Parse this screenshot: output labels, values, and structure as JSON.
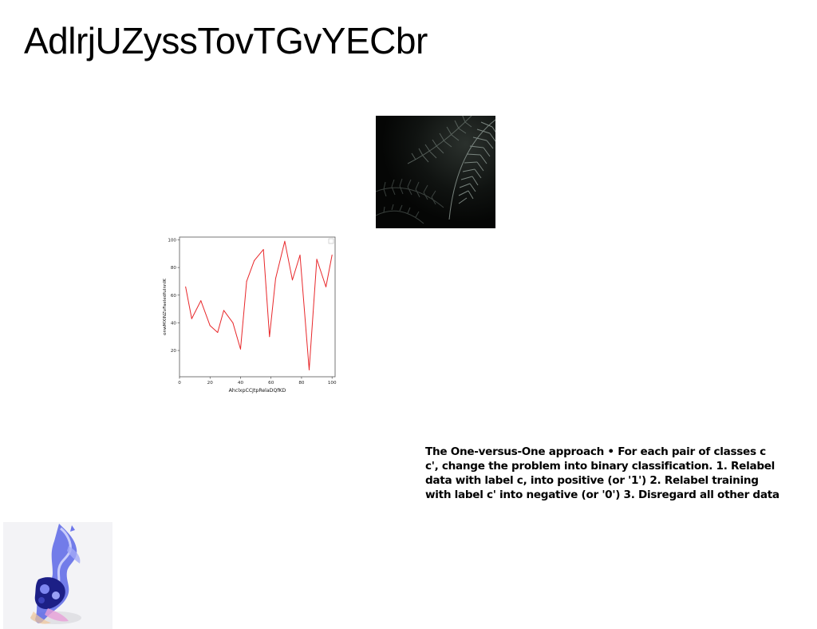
{
  "page": {
    "title": "AdlrjUZyssTovTGvYECbr"
  },
  "images": {
    "fern": {
      "description_icon": "fern-photo",
      "accent": "#7f8c86"
    },
    "abstract": {
      "description_icon": "abstract-blue-figure-photo",
      "accent": "#4a55d8"
    }
  },
  "body_text": {
    "content": "The One-versus-One approach • For each pair of classes c\nc', change the problem into binary classification. 1. Relabel\ndata with label c, into positive (or '1') 2. Relabel training\nwith label c' into negative (or '0') 3. Disregard all other data"
  },
  "chart_data": {
    "type": "line",
    "xlabel": "AhclxpCCJtpRelaDQfKD",
    "ylabel": "onwMXlNZvFaeledfuInnIK",
    "xlim": [
      0,
      102
    ],
    "ylim": [
      1,
      102
    ],
    "xticks": [
      0,
      20,
      40,
      60,
      80,
      100
    ],
    "yticks": [
      20,
      40,
      60,
      80,
      100
    ],
    "grid": false,
    "legend": "top-right (empty)",
    "series": [
      {
        "color": "#e8272a",
        "x": [
          4,
          8,
          14,
          20,
          25,
          29,
          35,
          40,
          44,
          49,
          55,
          59,
          63,
          69,
          74,
          79,
          85,
          90,
          96,
          100
        ],
        "y": [
          66,
          43,
          56,
          38,
          33,
          49,
          40,
          21,
          70,
          85,
          93,
          30,
          72,
          99,
          71,
          89,
          6,
          86,
          66,
          89
        ]
      }
    ]
  }
}
